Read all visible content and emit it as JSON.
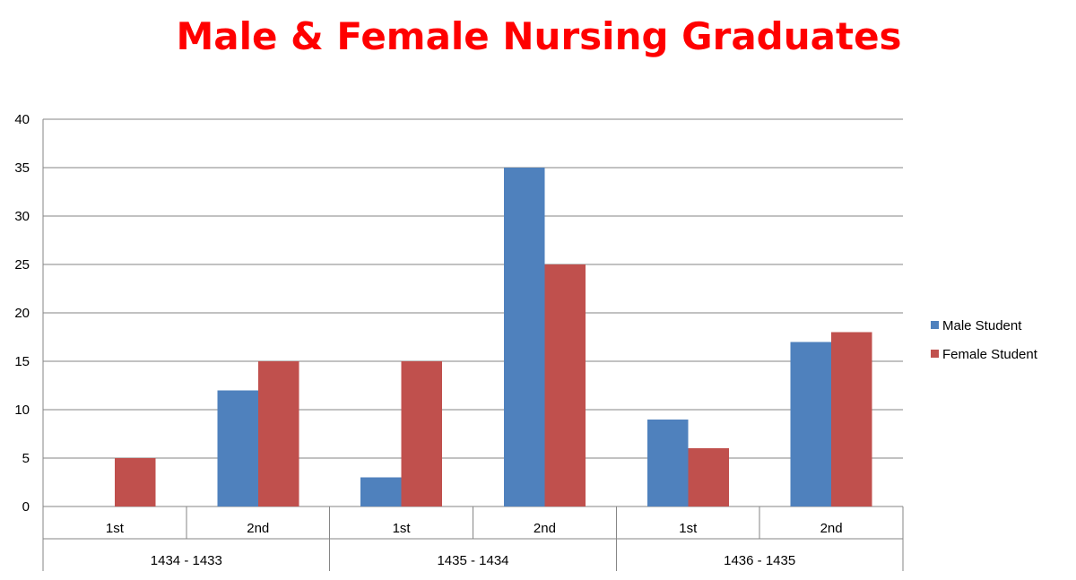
{
  "chart_data": {
    "type": "bar",
    "title": "Male & Female Nursing Graduates",
    "title_color": "#ff0000",
    "groups": [
      {
        "label": "1434 - 1433",
        "categories": [
          "1st",
          "2nd"
        ]
      },
      {
        "label": "1435 - 1434",
        "categories": [
          "1st",
          "2nd"
        ]
      },
      {
        "label": "1436 - 1435",
        "categories": [
          "1st",
          "2nd"
        ]
      }
    ],
    "categories": [
      "1st",
      "2nd",
      "1st",
      "2nd",
      "1st",
      "2nd"
    ],
    "series": [
      {
        "name": "Male Student",
        "color": "#4f81bd",
        "values": [
          0,
          12,
          3,
          35,
          9,
          17
        ]
      },
      {
        "name": "Female Student",
        "color": "#c0504d",
        "values": [
          5,
          15,
          15,
          25,
          6,
          18
        ]
      }
    ],
    "ylim": [
      0,
      40
    ],
    "yticks": [
      0,
      5,
      10,
      15,
      20,
      25,
      30,
      35,
      40
    ],
    "xlabel": "",
    "ylabel": "",
    "grid": true,
    "legend_position": "right"
  }
}
